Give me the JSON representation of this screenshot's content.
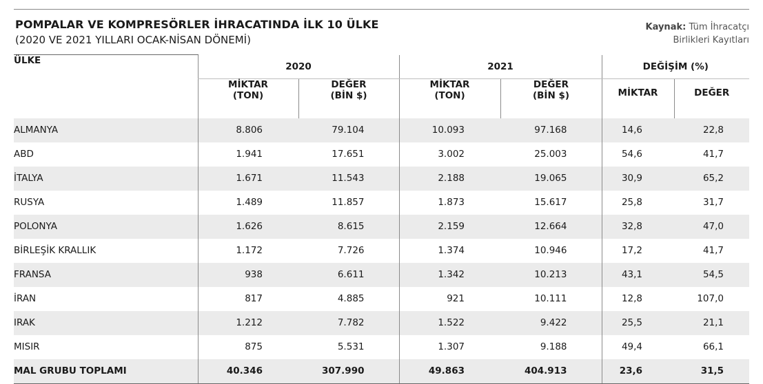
{
  "header": {
    "title": "POMPALAR VE KOMPRESÖRLER İHRACATINDA İLK 10 ÜLKE",
    "subtitle": "(2020 VE 2021 YILLARI OCAK-NİSAN DÖNEMİ)",
    "source_label": "Kaynak:",
    "source_line1": "Tüm İhracatçı",
    "source_line2": "Birlikleri Kayıtları"
  },
  "table": {
    "country_header": "ÜLKE",
    "groups": [
      "2020",
      "2021",
      "DEĞİŞİM (%)"
    ],
    "sub": {
      "miktar_ton_1": "MİKTAR",
      "miktar_ton_2": "(TON)",
      "deger_bin_1": "DEĞER",
      "deger_bin_2": "(BİN $)",
      "miktar": "MİKTAR",
      "deger": "DEĞER"
    },
    "rows": [
      [
        "ALMANYA",
        "8.806",
        "79.104",
        "10.093",
        "97.168",
        "14,6",
        "22,8"
      ],
      [
        "ABD",
        "1.941",
        "17.651",
        "3.002",
        "25.003",
        "54,6",
        "41,7"
      ],
      [
        "İTALYA",
        "1.671",
        "11.543",
        "2.188",
        "19.065",
        "30,9",
        "65,2"
      ],
      [
        "RUSYA",
        "1.489",
        "11.857",
        "1.873",
        "15.617",
        "25,8",
        "31,7"
      ],
      [
        "POLONYA",
        "1.626",
        "8.615",
        "2.159",
        "12.664",
        "32,8",
        "47,0"
      ],
      [
        "BİRLEŞİK KRALLIK",
        "1.172",
        "7.726",
        "1.374",
        "10.946",
        "17,2",
        "41,7"
      ],
      [
        "FRANSA",
        "938",
        "6.611",
        "1.342",
        "10.213",
        "43,1",
        "54,5"
      ],
      [
        "İRAN",
        "817",
        "4.885",
        "921",
        "10.111",
        "12,8",
        "107,0"
      ],
      [
        "IRAK",
        "1.212",
        "7.782",
        "1.522",
        "9.422",
        "25,5",
        "21,1"
      ],
      [
        "MISIR",
        "875",
        "5.531",
        "1.307",
        "9.188",
        "49,4",
        "66,1"
      ]
    ],
    "total": [
      "MAL GRUBU TOPLAMI",
      "40.346",
      "307.990",
      "49.863",
      "404.913",
      "23,6",
      "31,5"
    ]
  }
}
